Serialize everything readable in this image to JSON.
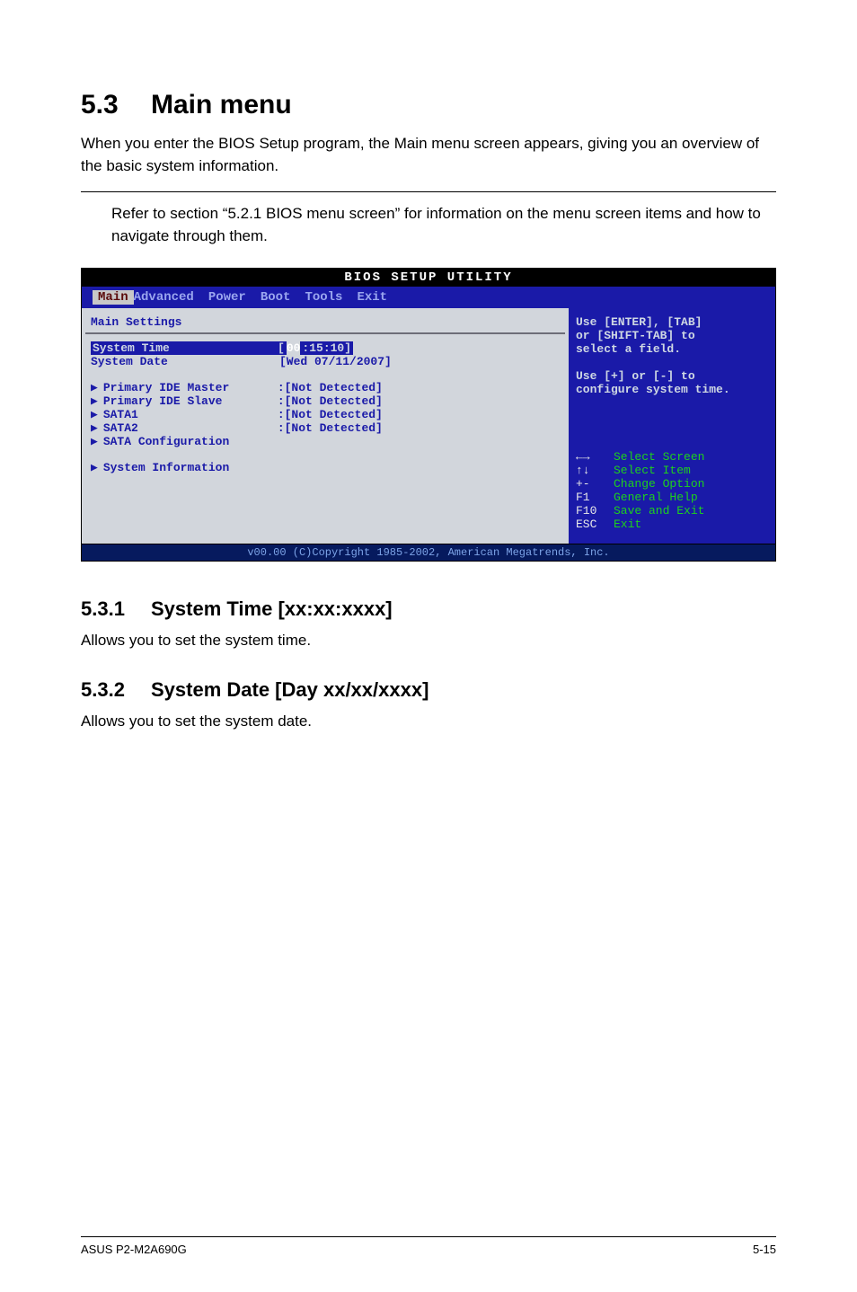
{
  "section": {
    "num": "5.3",
    "title": "Main menu",
    "intro": "When you enter the BIOS Setup program, the Main menu screen appears, giving you an overview of the basic system information.",
    "note": "Refer to section “5.2.1  BIOS menu screen” for information on the menu screen items and how to navigate through them."
  },
  "bios": {
    "utility_title": "BIOS SETUP UTILITY",
    "tabs": [
      "Main",
      "Advanced",
      "Power",
      "Boot",
      "Tools",
      "Exit"
    ],
    "selected_tab_index": 0,
    "left_title": "Main Settings",
    "rows": [
      {
        "type": "field",
        "label": "System Time",
        "value_prefix": "[",
        "value_sel": "00",
        "value_rest": ":15:10]",
        "selected": true
      },
      {
        "type": "field",
        "label": "System Date",
        "value": "[Wed 07/11/2007]",
        "selected": false
      },
      {
        "type": "spacer"
      },
      {
        "type": "item",
        "label": "Primary IDE Master",
        "value": ":[Not Detected]"
      },
      {
        "type": "item",
        "label": "Primary IDE Slave",
        "value": ":[Not Detected]"
      },
      {
        "type": "item",
        "label": "SATA1",
        "value": ":[Not Detected]"
      },
      {
        "type": "item",
        "label": "SATA2",
        "value": ":[Not Detected]"
      },
      {
        "type": "item",
        "label": "SATA Configuration",
        "value": ""
      },
      {
        "type": "spacer"
      },
      {
        "type": "item",
        "label": "System Information",
        "value": ""
      }
    ],
    "help": {
      "lines": [
        "Use [ENTER], [TAB]",
        "or [SHIFT-TAB] to",
        "select a field.",
        "",
        "Use [+] or [-] to",
        "configure system time."
      ],
      "keys": [
        {
          "k": "←→",
          "v": "Select Screen"
        },
        {
          "k": "↑↓",
          "v": "Select Item"
        },
        {
          "k": "+-",
          "v": "Change Option"
        },
        {
          "k": "F1",
          "v": "General Help"
        },
        {
          "k": "F10",
          "v": "Save and Exit"
        },
        {
          "k": "ESC",
          "v": "Exit"
        }
      ]
    },
    "footer": "v00.00 (C)Copyright 1985-2002, American Megatrends, Inc."
  },
  "subs": [
    {
      "num": "5.3.1",
      "title": "System Time [xx:xx:xxxx]",
      "body": "Allows you to set the system time."
    },
    {
      "num": "5.3.2",
      "title": "System Date [Day xx/xx/xxxx]",
      "body": "Allows you to set the system date."
    }
  ],
  "footer": {
    "left": "ASUS P2-M2A690G",
    "right": "5-15"
  }
}
